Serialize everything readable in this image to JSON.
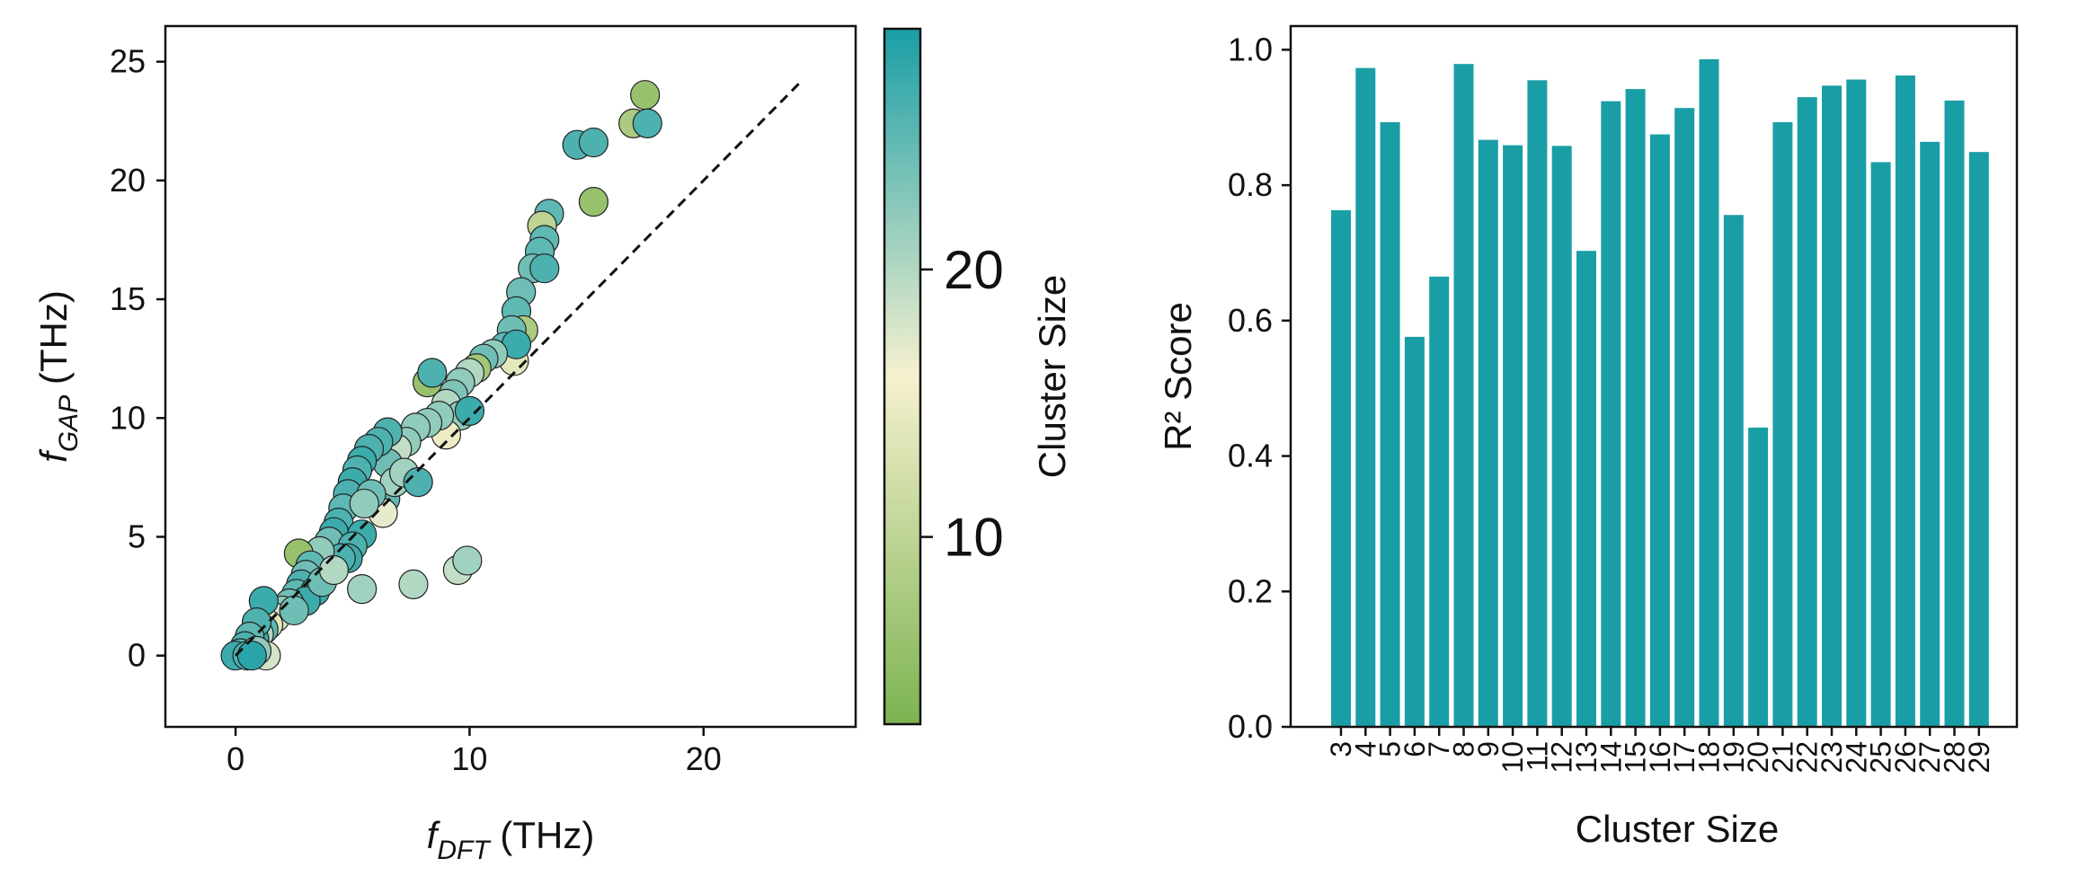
{
  "figure": {
    "colors": {
      "teal": "#1a9ea6",
      "mid": "#f6f1cf",
      "green": "#7cb351",
      "axis": "#111111"
    }
  },
  "chart_data": [
    {
      "type": "scatter",
      "title": "",
      "xlabel": {
        "main": "f",
        "sub": "DFT",
        "unit": " (THz)"
      },
      "ylabel": {
        "main": "f",
        "sub": "GAP",
        "unit": " (THz)"
      },
      "xlim": [
        -3,
        26.5
      ],
      "ylim": [
        -3,
        26.5
      ],
      "xticks": [
        0,
        10,
        20
      ],
      "yticks": [
        0,
        5,
        10,
        15,
        20,
        25
      ],
      "reference_line": {
        "style": "dashed",
        "from": [
          0,
          0
        ],
        "to": [
          24.1,
          24.1
        ]
      },
      "colorbar": {
        "label": "Cluster Size",
        "range": [
          3,
          29
        ],
        "ticks": [
          10,
          20
        ]
      },
      "points": [
        {
          "x": 17.5,
          "y": 23.6,
          "c": 6
        },
        {
          "x": 17.0,
          "y": 22.4,
          "c": 8
        },
        {
          "x": 17.6,
          "y": 22.4,
          "c": 26
        },
        {
          "x": 14.6,
          "y": 21.5,
          "c": 26
        },
        {
          "x": 15.3,
          "y": 21.6,
          "c": 26
        },
        {
          "x": 15.3,
          "y": 19.1,
          "c": 6
        },
        {
          "x": 13.4,
          "y": 18.6,
          "c": 25
        },
        {
          "x": 13.1,
          "y": 18.1,
          "c": 10
        },
        {
          "x": 13.2,
          "y": 17.5,
          "c": 25
        },
        {
          "x": 13.0,
          "y": 17.0,
          "c": 25
        },
        {
          "x": 12.7,
          "y": 16.3,
          "c": 24
        },
        {
          "x": 13.2,
          "y": 16.3,
          "c": 26
        },
        {
          "x": 12.2,
          "y": 15.3,
          "c": 24
        },
        {
          "x": 12.0,
          "y": 14.5,
          "c": 25
        },
        {
          "x": 12.3,
          "y": 13.7,
          "c": 8
        },
        {
          "x": 11.8,
          "y": 13.7,
          "c": 24
        },
        {
          "x": 11.5,
          "y": 13.0,
          "c": 25
        },
        {
          "x": 11.9,
          "y": 12.4,
          "c": 14
        },
        {
          "x": 12.0,
          "y": 13.1,
          "c": 27
        },
        {
          "x": 11.0,
          "y": 12.7,
          "c": 22
        },
        {
          "x": 10.6,
          "y": 12.5,
          "c": 24
        },
        {
          "x": 10.3,
          "y": 12.1,
          "c": 7
        },
        {
          "x": 10.0,
          "y": 11.9,
          "c": 20
        },
        {
          "x": 9.6,
          "y": 11.5,
          "c": 22
        },
        {
          "x": 9.3,
          "y": 11.0,
          "c": 23
        },
        {
          "x": 8.2,
          "y": 11.5,
          "c": 6
        },
        {
          "x": 8.4,
          "y": 11.9,
          "c": 26
        },
        {
          "x": 9.0,
          "y": 10.6,
          "c": 20
        },
        {
          "x": 9.6,
          "y": 10.1,
          "c": 22
        },
        {
          "x": 9.0,
          "y": 9.3,
          "c": 15
        },
        {
          "x": 10.0,
          "y": 10.3,
          "c": 27
        },
        {
          "x": 8.7,
          "y": 10.1,
          "c": 22
        },
        {
          "x": 8.2,
          "y": 9.8,
          "c": 22
        },
        {
          "x": 7.7,
          "y": 9.6,
          "c": 22
        },
        {
          "x": 7.3,
          "y": 9.0,
          "c": 22
        },
        {
          "x": 6.9,
          "y": 8.7,
          "c": 19
        },
        {
          "x": 6.5,
          "y": 8.1,
          "c": 24
        },
        {
          "x": 6.5,
          "y": 9.4,
          "c": 26
        },
        {
          "x": 6.1,
          "y": 9.0,
          "c": 26
        },
        {
          "x": 5.7,
          "y": 8.7,
          "c": 26
        },
        {
          "x": 5.4,
          "y": 8.2,
          "c": 27
        },
        {
          "x": 5.2,
          "y": 7.8,
          "c": 26
        },
        {
          "x": 5.0,
          "y": 7.3,
          "c": 27
        },
        {
          "x": 4.8,
          "y": 6.8,
          "c": 26
        },
        {
          "x": 4.6,
          "y": 6.2,
          "c": 25
        },
        {
          "x": 4.4,
          "y": 5.6,
          "c": 26
        },
        {
          "x": 4.2,
          "y": 5.2,
          "c": 27
        },
        {
          "x": 4.0,
          "y": 4.8,
          "c": 24
        },
        {
          "x": 6.4,
          "y": 6.6,
          "c": 25
        },
        {
          "x": 6.3,
          "y": 6.0,
          "c": 17
        },
        {
          "x": 6.8,
          "y": 7.3,
          "c": 21
        },
        {
          "x": 7.2,
          "y": 7.7,
          "c": 21
        },
        {
          "x": 7.8,
          "y": 7.3,
          "c": 26
        },
        {
          "x": 5.8,
          "y": 6.8,
          "c": 24
        },
        {
          "x": 5.5,
          "y": 6.4,
          "c": 22
        },
        {
          "x": 5.4,
          "y": 5.1,
          "c": 27
        },
        {
          "x": 5.0,
          "y": 4.6,
          "c": 26
        },
        {
          "x": 4.8,
          "y": 4.1,
          "c": 27
        },
        {
          "x": 4.5,
          "y": 4.1,
          "c": 26
        },
        {
          "x": 3.6,
          "y": 4.4,
          "c": 22
        },
        {
          "x": 2.7,
          "y": 4.3,
          "c": 6
        },
        {
          "x": 3.2,
          "y": 3.8,
          "c": 25
        },
        {
          "x": 3.0,
          "y": 3.4,
          "c": 24
        },
        {
          "x": 2.8,
          "y": 3.0,
          "c": 26
        },
        {
          "x": 2.6,
          "y": 2.6,
          "c": 25
        },
        {
          "x": 3.4,
          "y": 2.7,
          "c": 27
        },
        {
          "x": 3.0,
          "y": 2.3,
          "c": 27
        },
        {
          "x": 2.3,
          "y": 2.2,
          "c": 24
        },
        {
          "x": 2.0,
          "y": 1.9,
          "c": 22
        },
        {
          "x": 1.7,
          "y": 1.6,
          "c": 18
        },
        {
          "x": 1.4,
          "y": 1.3,
          "c": 14
        },
        {
          "x": 1.2,
          "y": 1.1,
          "c": 25
        },
        {
          "x": 1.0,
          "y": 0.9,
          "c": 20
        },
        {
          "x": 0.8,
          "y": 0.7,
          "c": 27
        },
        {
          "x": 1.2,
          "y": 2.3,
          "c": 27
        },
        {
          "x": 0.9,
          "y": 1.4,
          "c": 26
        },
        {
          "x": 0.6,
          "y": 0.8,
          "c": 25
        },
        {
          "x": 0.4,
          "y": 0.4,
          "c": 26
        },
        {
          "x": 0.2,
          "y": 0.1,
          "c": 25
        },
        {
          "x": 0.0,
          "y": 0.0,
          "c": 27
        },
        {
          "x": 0.5,
          "y": 0.0,
          "c": 26
        },
        {
          "x": 1.3,
          "y": 0.0,
          "c": 18
        },
        {
          "x": 0.9,
          "y": 0.2,
          "c": 22
        },
        {
          "x": 0.7,
          "y": 0.0,
          "c": 28
        },
        {
          "x": 5.4,
          "y": 2.8,
          "c": 21
        },
        {
          "x": 7.6,
          "y": 3.0,
          "c": 20
        },
        {
          "x": 9.5,
          "y": 3.6,
          "c": 19
        },
        {
          "x": 9.9,
          "y": 4.0,
          "c": 21
        },
        {
          "x": 2.5,
          "y": 1.9,
          "c": 24
        },
        {
          "x": 3.7,
          "y": 3.1,
          "c": 24
        },
        {
          "x": 4.2,
          "y": 3.6,
          "c": 20
        }
      ]
    },
    {
      "type": "bar",
      "title": "",
      "xlabel": "Cluster Size",
      "ylabel": "R² Score",
      "ylim": [
        0,
        1.035
      ],
      "yticks": [
        "0.0",
        "0.2",
        "0.4",
        "0.6",
        "0.8",
        "1.0"
      ],
      "categories": [
        "3",
        "4",
        "5",
        "6",
        "7",
        "8",
        "9",
        "10",
        "11",
        "12",
        "13",
        "14",
        "15",
        "16",
        "17",
        "18",
        "19",
        "20",
        "21",
        "22",
        "23",
        "24",
        "25",
        "26",
        "27",
        "28",
        "29"
      ],
      "values": [
        0.763,
        0.973,
        0.893,
        0.576,
        0.665,
        0.979,
        0.867,
        0.859,
        0.955,
        0.858,
        0.703,
        0.924,
        0.942,
        0.875,
        0.914,
        0.986,
        0.756,
        0.442,
        0.893,
        0.93,
        0.947,
        0.956,
        0.834,
        0.962,
        0.864,
        0.925,
        0.849
      ]
    }
  ]
}
